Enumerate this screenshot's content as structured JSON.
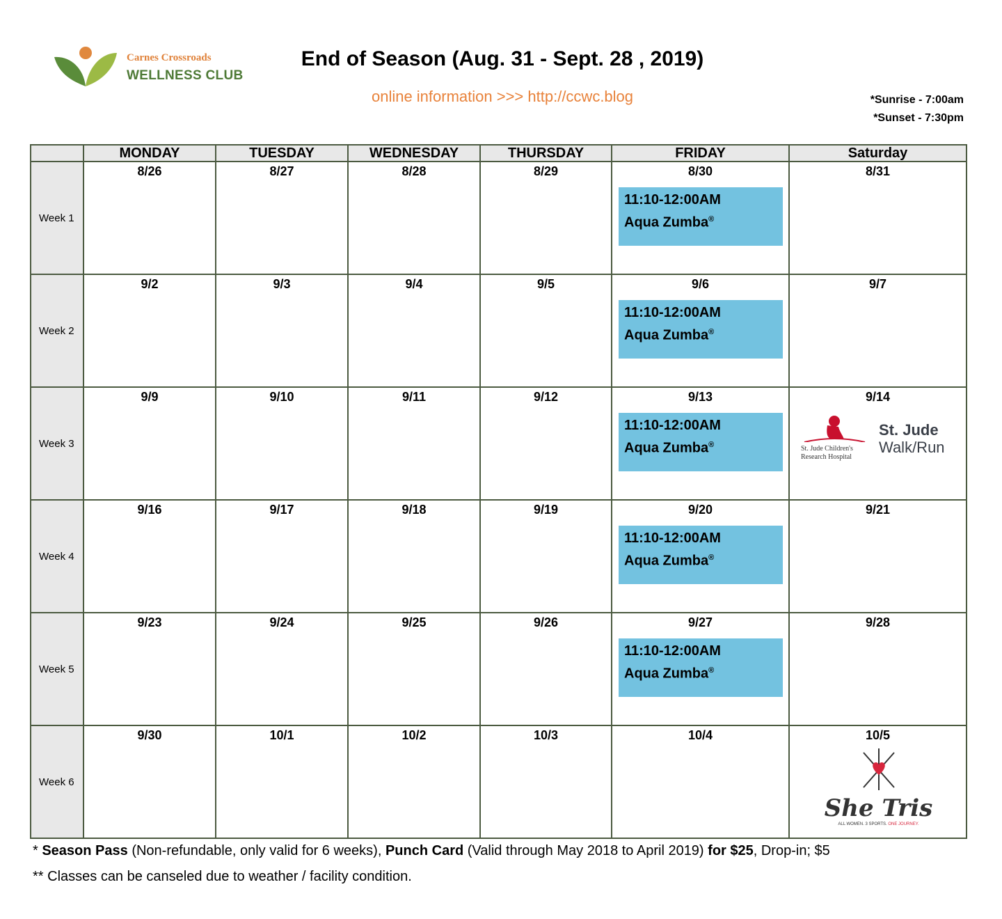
{
  "logo": {
    "line1": "Carnes Crossroads",
    "line2": "WELLNESS CLUB"
  },
  "title": "End of Season (Aug. 31 - Sept. 28 , 2019)",
  "online": "online information >>> http://ccwc.blog",
  "sunrise": "*Sunrise - 7:00am",
  "sunset": "*Sunset - 7:30pm",
  "headers": [
    "MONDAY",
    "TUESDAY",
    "WEDNESDAY",
    "THURSDAY",
    "FRIDAY",
    "Saturday"
  ],
  "weeks": [
    {
      "label": "Week 1",
      "dates": [
        "8/26",
        "8/27",
        "8/28",
        "8/29",
        "8/30",
        "8/31"
      ]
    },
    {
      "label": "Week 2",
      "dates": [
        "9/2",
        "9/3",
        "9/4",
        "9/5",
        "9/6",
        "9/7"
      ]
    },
    {
      "label": "Week 3",
      "dates": [
        "9/9",
        "9/10",
        "9/11",
        "9/12",
        "9/13",
        "9/14"
      ]
    },
    {
      "label": "Week 4",
      "dates": [
        "9/16",
        "9/17",
        "9/18",
        "9/19",
        "9/20",
        "9/21"
      ]
    },
    {
      "label": "Week 5",
      "dates": [
        "9/23",
        "9/24",
        "9/25",
        "9/26",
        "9/27",
        "9/28"
      ]
    },
    {
      "label": "Week 6",
      "dates": [
        "9/30",
        "10/1",
        "10/2",
        "10/3",
        "10/4",
        "10/5"
      ]
    }
  ],
  "event": {
    "time": "11:10-12:00AM",
    "name": "Aqua Zumba",
    "mark": "®",
    "color": "#73c2e0"
  },
  "stjude": {
    "hospital1": "St. Jude Children's",
    "hospital2": "Research Hospital",
    "title1": "St. Jude",
    "title2": "Walk/Run"
  },
  "shetris": {
    "name": "She Tris",
    "tag1": "ALL WOMEN. 3 SPORTS.",
    "tag2": "ONE JOURNEY."
  },
  "footer": {
    "l1a": "* ",
    "l1b": "Season Pass",
    "l1c": " (Non-refundable, only valid for 6 weeks), ",
    "l1d": "Punch Card",
    "l1e": " (Valid through May 2018 to April 2019) ",
    "l1f": "for $25",
    ", l1g": "",
    "l1h": ", Drop-in; $5",
    "line2": "** Classes can be canseled due to weather / facility condition."
  }
}
